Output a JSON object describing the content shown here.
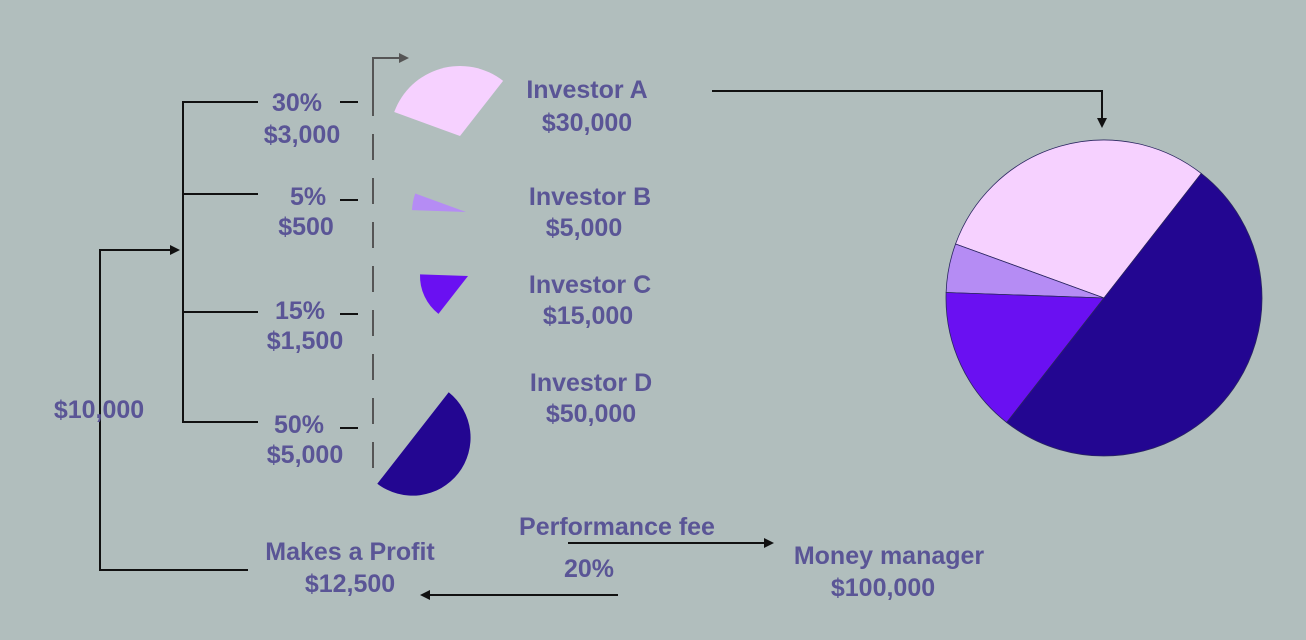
{
  "total": "$10,000",
  "shares": [
    {
      "percent": "30%",
      "amount": "$3,000",
      "investor": "Investor A",
      "value": "$30,000",
      "fraction": 0.3,
      "color": "#f6d1ff"
    },
    {
      "percent": "5%",
      "amount": "$500",
      "investor": "Investor B",
      "value": "$5,000",
      "fraction": 0.05,
      "color": "#b58cf4"
    },
    {
      "percent": "15%",
      "amount": "$1,500",
      "investor": "Investor C",
      "value": "$15,000",
      "fraction": 0.15,
      "color": "#6a10f2"
    },
    {
      "percent": "50%",
      "amount": "$5,000",
      "investor": "Investor D",
      "value": "$50,000",
      "fraction": 0.5,
      "color": "#230691"
    }
  ],
  "profit": {
    "label": "Makes a Profit",
    "value": "$12,500"
  },
  "fee": {
    "label": "Performance fee",
    "rate": "20%"
  },
  "manager": {
    "label": "Money manager",
    "value": "$100,000"
  }
}
